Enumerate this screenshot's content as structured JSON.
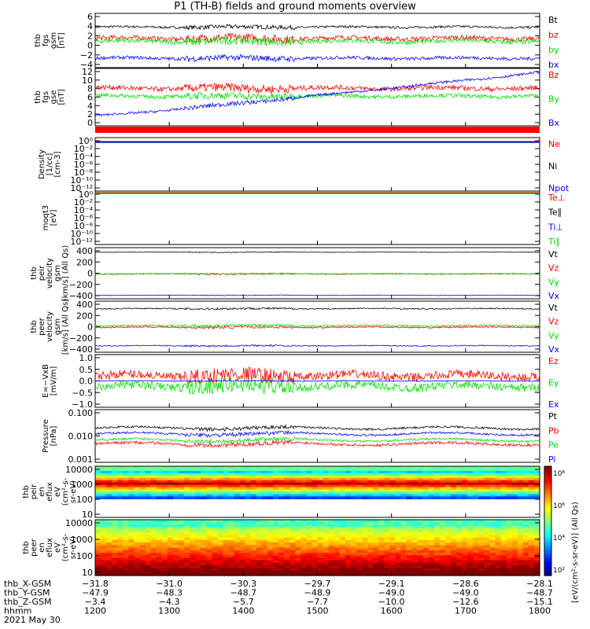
{
  "title": "P1 (TH-B) fields and ground moments overview",
  "colors": {
    "black": "#000000",
    "red": "#ff0000",
    "green": "#00e000",
    "blue": "#0000ff"
  },
  "chart_data": [
    {
      "type": "line",
      "ylabel": [
        "thb",
        "fgs",
        "gsm",
        "[nT]"
      ],
      "yticks": [
        "6",
        "4",
        "2",
        "0",
        "−2",
        "−4"
      ],
      "ylim": [
        -5,
        6.5
      ],
      "series": [
        {
          "name": "Bt",
          "color": "black",
          "level": 3.6,
          "noise": 0.25
        },
        {
          "name": "bz",
          "color": "red",
          "level": 1.2,
          "noise": 0.5
        },
        {
          "name": "by",
          "color": "green",
          "level": 0.6,
          "noise": 0.5
        },
        {
          "name": "bx",
          "color": "blue",
          "level": -3.0,
          "noise": 0.35
        }
      ]
    },
    {
      "type": "line",
      "ylabel": [
        "thb",
        "fgs",
        "gse",
        "[nT]"
      ],
      "yticks": [
        "12",
        "10",
        "8",
        "6",
        "4",
        "2",
        "0"
      ],
      "ylim": [
        -1,
        13.5
      ],
      "series": [
        {
          "name": "Bz",
          "color": "red",
          "level": 8.5,
          "noise": 0.6
        },
        {
          "name": "By",
          "color": "green",
          "level": 6.5,
          "noise": 0.5
        },
        {
          "name": "Bx",
          "color": "blue",
          "level": [
            1.5,
            12.5
          ],
          "noise": 0.3
        }
      ]
    },
    {
      "type": "line",
      "ylabel": [
        "Density",
        "[1/cc]",
        "[cm-3]"
      ],
      "yticks": [
        "10⁰",
        "10⁻²",
        "10⁻⁴",
        "10⁻⁶",
        "10⁻⁸",
        "10⁻¹⁰",
        "10⁻¹²"
      ],
      "series": [
        {
          "name": "Ne",
          "color": "red"
        },
        {
          "name": "Ni",
          "color": "black"
        },
        {
          "name": "Npot",
          "color": "blue"
        }
      ]
    },
    {
      "type": "line",
      "ylabel": [
        "moqt3",
        "[eV]"
      ],
      "yticks": [
        "10⁰",
        "10⁻²",
        "10⁻⁴",
        "10⁻⁶",
        "10⁻⁸",
        "10⁻¹⁰",
        "10⁻¹²"
      ],
      "series": [
        {
          "name": "Te⊥",
          "color": "red"
        },
        {
          "name": "Te∥",
          "color": "black"
        },
        {
          "name": "Ti⊥",
          "color": "blue"
        },
        {
          "name": "Ti∥",
          "color": "green"
        }
      ]
    },
    {
      "type": "line",
      "ylabel": [
        "thb",
        "peir",
        "velocity",
        "gsm",
        "[km/s] (All Qs)"
      ],
      "yticks": [
        "400",
        "200",
        "0",
        "−200",
        "−400"
      ],
      "ylim": [
        -500,
        520
      ],
      "series": [
        {
          "name": "Vt",
          "color": "black",
          "level": 430,
          "noise": 5
        },
        {
          "name": "Vz",
          "color": "red",
          "level": -5,
          "noise": 8
        },
        {
          "name": "Vy",
          "color": "green",
          "level": 0,
          "noise": 8
        },
        {
          "name": "Vx",
          "color": "blue",
          "level": -430,
          "noise": 5
        }
      ]
    },
    {
      "type": "line",
      "ylabel": [
        "thb",
        "peer",
        "velocity",
        "gsm",
        "[km/s] (All Qs)"
      ],
      "yticks": [
        "400",
        "200",
        "0",
        "−200",
        "−400"
      ],
      "ylim": [
        -500,
        520
      ],
      "series": [
        {
          "name": "Vt",
          "color": "black",
          "level": 370,
          "noise": 12
        },
        {
          "name": "Vz",
          "color": "red",
          "level": 0,
          "noise": 15
        },
        {
          "name": "Vy",
          "color": "green",
          "level": 30,
          "noise": 15
        },
        {
          "name": "Vx",
          "color": "blue",
          "level": -370,
          "noise": 10
        }
      ]
    },
    {
      "type": "line",
      "ylabel": [
        "E=−VxB",
        "[mV/m]"
      ],
      "yticks": [
        "1.0",
        "0.5",
        "0.0",
        "−0.5",
        "−1.0"
      ],
      "ylim": [
        -1.25,
        1.25
      ],
      "series": [
        {
          "name": "Ez",
          "color": "red",
          "level": 0.25,
          "noise": 0.2
        },
        {
          "name": "Ey",
          "color": "green",
          "level": -0.25,
          "noise": 0.2
        },
        {
          "name": "Ex",
          "color": "blue",
          "level": 0.0,
          "noise": 0.02
        }
      ]
    },
    {
      "type": "line",
      "ylabel": [
        "Pressure",
        "[nPa]"
      ],
      "yticks": [
        "0.100",
        "0.010",
        "0.001"
      ],
      "yscale": "log",
      "ylim": [
        0.001,
        0.1
      ],
      "series": [
        {
          "name": "Pt",
          "color": "black",
          "level": 0.02,
          "noise": 0.08
        },
        {
          "name": "Pb",
          "color": "red",
          "level": 0.005,
          "noise": 0.1
        },
        {
          "name": "Pe",
          "color": "green",
          "level": 0.007,
          "noise": 0.08
        },
        {
          "name": "Pi",
          "color": "blue",
          "level": 0.012,
          "noise": 0.08
        }
      ]
    },
    {
      "type": "heatmap",
      "ylabel": [
        "thb",
        "peir",
        "en",
        "eflux",
        "eV",
        "(cm²-s-",
        "sr-eV)"
      ],
      "yticks": [
        "10000",
        "1000",
        "100",
        "10"
      ],
      "yscale": "log"
    },
    {
      "type": "heatmap",
      "ylabel": [
        "thb",
        "peer",
        "en",
        "eflux",
        "eV",
        "(cm²-s-",
        "sr-eV)"
      ],
      "yticks": [
        "10000",
        "1000",
        "100",
        "10"
      ],
      "yscale": "log"
    }
  ],
  "colorbar": {
    "ticks": [
      "10⁸",
      "10⁶",
      "10⁴",
      "10²"
    ],
    "label": "[eV/(cm²-s-sr-eV)] (All Qs)"
  },
  "xaxis": {
    "ticks": [
      "1200",
      "1300",
      "1400",
      "1500",
      "1600",
      "1700",
      "1800"
    ],
    "rows": [
      {
        "label": "thb_X-GSM",
        "values": [
          "−31.8",
          "−31.0",
          "−30.3",
          "−29.7",
          "−29.1",
          "−28.6",
          "−28.1"
        ]
      },
      {
        "label": "thb_Y-GSM",
        "values": [
          "−47.9",
          "−48.3",
          "−48.7",
          "−48.9",
          "−49.0",
          "−49.0",
          "−48.7"
        ]
      },
      {
        "label": "thb_Z-GSM",
        "values": [
          "−3.4",
          "−4.3",
          "−5.7",
          "−7.7",
          "−10.0",
          "−12.6",
          "−15.1"
        ]
      },
      {
        "label": "hhmm",
        "values": [
          "1200",
          "1300",
          "1400",
          "1500",
          "1600",
          "1700",
          "1800"
        ]
      }
    ],
    "date": "2021 May 30"
  }
}
